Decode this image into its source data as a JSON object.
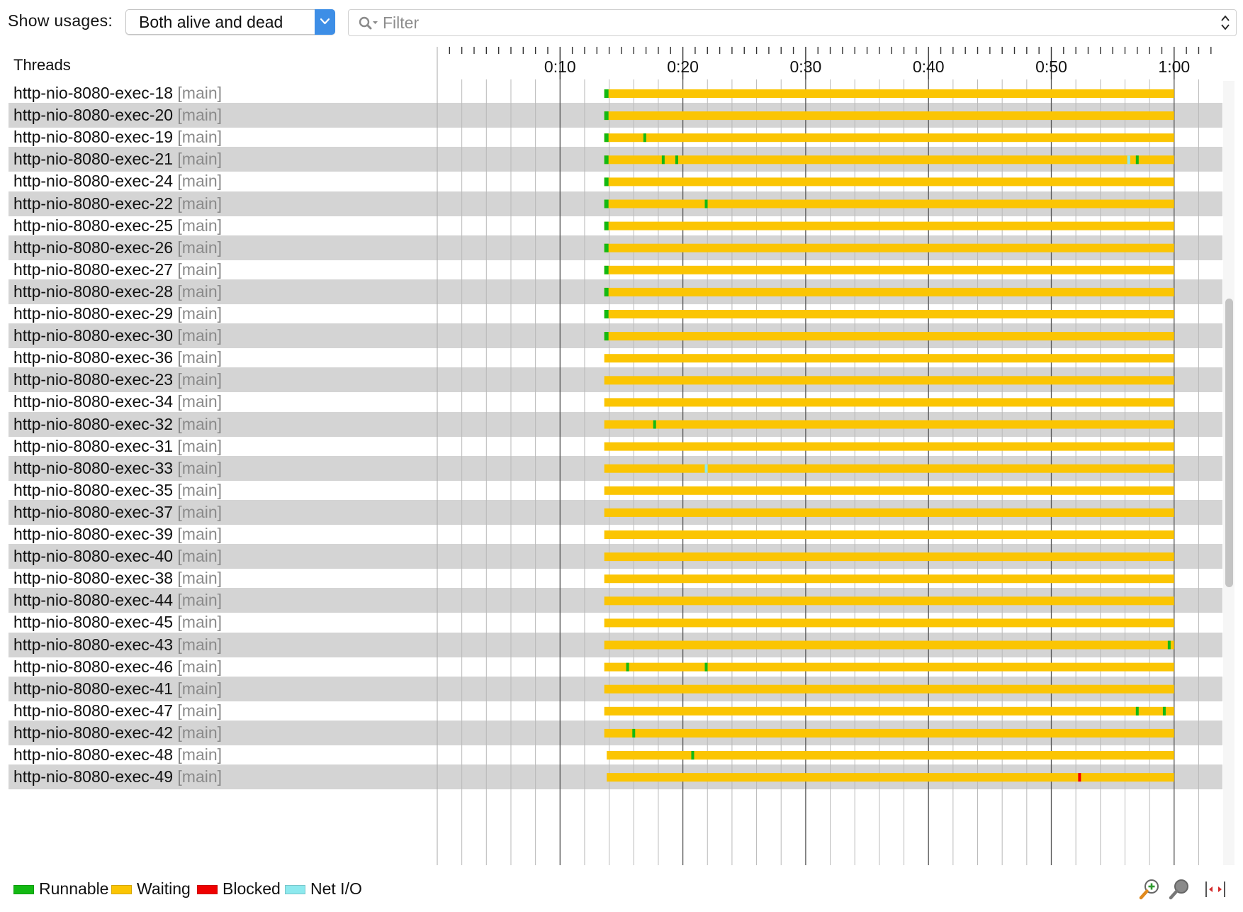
{
  "toolbar": {
    "show_label": "Show usages:",
    "usage_value": "Both alive and dead",
    "filter_placeholder": "Filter",
    "search_icon": "search-icon",
    "stepper_icon": "up-down-stepper-icon"
  },
  "list": {
    "header": "Threads"
  },
  "timeline": {
    "tick_labels": [
      "0:10",
      "0:20",
      "0:30",
      "0:40",
      "0:50",
      "1:00"
    ],
    "end": "1:00"
  },
  "colors": {
    "runnable": "#13b913",
    "waiting": "#fbc503",
    "blocked": "#ef0000",
    "netio": "#8de9ee",
    "row_alt": "#d4d4d4",
    "gridline": "#b9b9b9",
    "major_gridline": "#555555"
  },
  "threads": [
    {
      "name": "http-nio-8080-exec-18",
      "group": "[main]",
      "start": 13.6,
      "events": [
        {
          "t": 13.6,
          "state": "runnable"
        }
      ]
    },
    {
      "name": "http-nio-8080-exec-20",
      "group": "[main]",
      "start": 13.6,
      "events": [
        {
          "t": 13.6,
          "state": "runnable"
        }
      ]
    },
    {
      "name": "http-nio-8080-exec-19",
      "group": "[main]",
      "start": 13.6,
      "events": [
        {
          "t": 13.6,
          "state": "runnable"
        },
        {
          "t": 16.9,
          "state": "runnable"
        }
      ]
    },
    {
      "name": "http-nio-8080-exec-21",
      "group": "[main]",
      "start": 13.6,
      "events": [
        {
          "t": 13.6,
          "state": "runnable"
        },
        {
          "t": 18.4,
          "state": "runnable"
        },
        {
          "t": 19.5,
          "state": "runnable"
        },
        {
          "t": 56.3,
          "state": "netio"
        },
        {
          "t": 57.0,
          "state": "runnable"
        }
      ]
    },
    {
      "name": "http-nio-8080-exec-24",
      "group": "[main]",
      "start": 13.6,
      "events": [
        {
          "t": 13.6,
          "state": "runnable"
        }
      ]
    },
    {
      "name": "http-nio-8080-exec-22",
      "group": "[main]",
      "start": 13.6,
      "events": [
        {
          "t": 13.6,
          "state": "runnable"
        },
        {
          "t": 21.9,
          "state": "runnable"
        }
      ]
    },
    {
      "name": "http-nio-8080-exec-25",
      "group": "[main]",
      "start": 13.6,
      "events": [
        {
          "t": 13.6,
          "state": "runnable"
        }
      ]
    },
    {
      "name": "http-nio-8080-exec-26",
      "group": "[main]",
      "start": 13.6,
      "events": [
        {
          "t": 13.6,
          "state": "runnable"
        }
      ]
    },
    {
      "name": "http-nio-8080-exec-27",
      "group": "[main]",
      "start": 13.6,
      "events": [
        {
          "t": 13.6,
          "state": "runnable"
        }
      ]
    },
    {
      "name": "http-nio-8080-exec-28",
      "group": "[main]",
      "start": 13.6,
      "events": [
        {
          "t": 13.6,
          "state": "runnable"
        }
      ]
    },
    {
      "name": "http-nio-8080-exec-29",
      "group": "[main]",
      "start": 13.6,
      "events": [
        {
          "t": 13.6,
          "state": "runnable"
        }
      ]
    },
    {
      "name": "http-nio-8080-exec-30",
      "group": "[main]",
      "start": 13.6,
      "events": [
        {
          "t": 13.6,
          "state": "runnable"
        }
      ]
    },
    {
      "name": "http-nio-8080-exec-36",
      "group": "[main]",
      "start": 13.6,
      "events": []
    },
    {
      "name": "http-nio-8080-exec-23",
      "group": "[main]",
      "start": 13.6,
      "events": []
    },
    {
      "name": "http-nio-8080-exec-34",
      "group": "[main]",
      "start": 13.6,
      "events": []
    },
    {
      "name": "http-nio-8080-exec-32",
      "group": "[main]",
      "start": 13.6,
      "events": [
        {
          "t": 17.7,
          "state": "runnable"
        }
      ]
    },
    {
      "name": "http-nio-8080-exec-31",
      "group": "[main]",
      "start": 13.6,
      "events": []
    },
    {
      "name": "http-nio-8080-exec-33",
      "group": "[main]",
      "start": 13.6,
      "events": [
        {
          "t": 21.9,
          "state": "netio"
        }
      ]
    },
    {
      "name": "http-nio-8080-exec-35",
      "group": "[main]",
      "start": 13.6,
      "events": []
    },
    {
      "name": "http-nio-8080-exec-37",
      "group": "[main]",
      "start": 13.6,
      "events": []
    },
    {
      "name": "http-nio-8080-exec-39",
      "group": "[main]",
      "start": 13.6,
      "events": []
    },
    {
      "name": "http-nio-8080-exec-40",
      "group": "[main]",
      "start": 13.6,
      "events": []
    },
    {
      "name": "http-nio-8080-exec-38",
      "group": "[main]",
      "start": 13.6,
      "events": []
    },
    {
      "name": "http-nio-8080-exec-44",
      "group": "[main]",
      "start": 13.6,
      "events": []
    },
    {
      "name": "http-nio-8080-exec-45",
      "group": "[main]",
      "start": 13.6,
      "events": []
    },
    {
      "name": "http-nio-8080-exec-43",
      "group": "[main]",
      "start": 13.6,
      "events": [
        {
          "t": 59.6,
          "state": "runnable"
        }
      ]
    },
    {
      "name": "http-nio-8080-exec-46",
      "group": "[main]",
      "start": 13.6,
      "events": [
        {
          "t": 15.5,
          "state": "runnable"
        },
        {
          "t": 21.9,
          "state": "runnable"
        }
      ]
    },
    {
      "name": "http-nio-8080-exec-41",
      "group": "[main]",
      "start": 13.6,
      "events": []
    },
    {
      "name": "http-nio-8080-exec-47",
      "group": "[main]",
      "start": 13.6,
      "events": [
        {
          "t": 57.0,
          "state": "runnable"
        },
        {
          "t": 59.2,
          "state": "runnable"
        }
      ]
    },
    {
      "name": "http-nio-8080-exec-42",
      "group": "[main]",
      "start": 13.6,
      "events": [
        {
          "t": 16.0,
          "state": "runnable"
        }
      ]
    },
    {
      "name": "http-nio-8080-exec-48",
      "group": "[main]",
      "start": 13.8,
      "events": [
        {
          "t": 20.8,
          "state": "runnable"
        }
      ]
    },
    {
      "name": "http-nio-8080-exec-49",
      "group": "[main]",
      "start": 13.8,
      "events": [
        {
          "t": 52.3,
          "state": "blocked"
        }
      ]
    }
  ],
  "legend": [
    {
      "label": "Runnable",
      "state": "runnable"
    },
    {
      "label": "Waiting",
      "state": "waiting"
    },
    {
      "label": "Blocked",
      "state": "blocked"
    },
    {
      "label": "Net I/O",
      "state": "netio"
    }
  ],
  "bottom_icons": [
    "zoom-in-icon",
    "zoom-out-icon",
    "fit-width-icon"
  ]
}
